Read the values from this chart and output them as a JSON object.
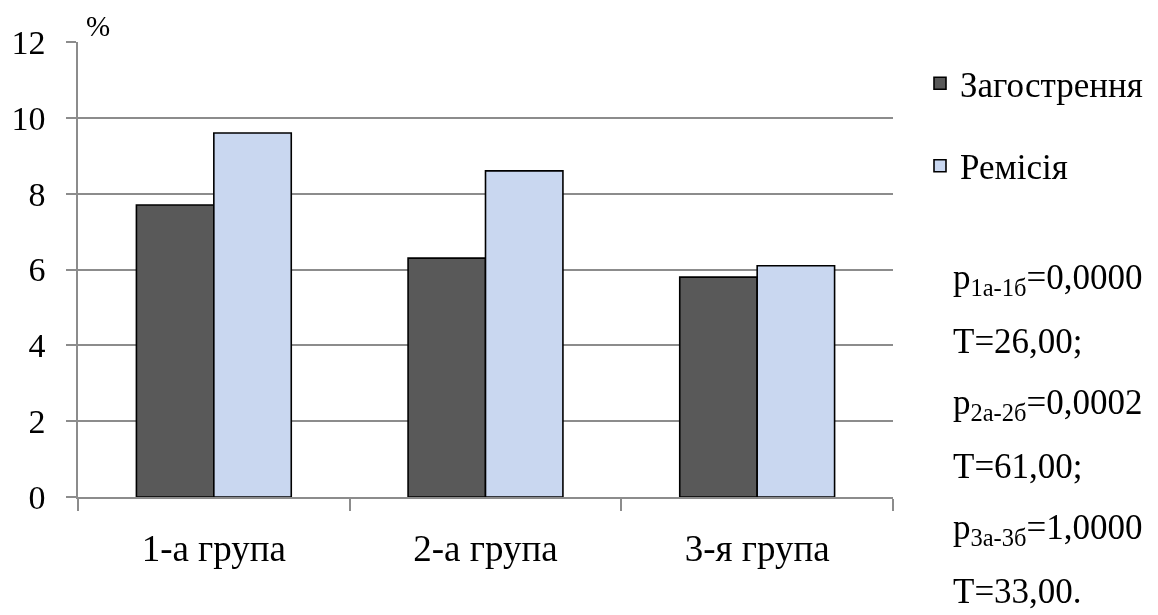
{
  "chart_data": {
    "type": "bar",
    "ylabel": "%",
    "categories": [
      "1-а група",
      "2-а група",
      "3-я група"
    ],
    "series": [
      {
        "name": "Загострення",
        "color": "#595959",
        "values": [
          7.7,
          6.3,
          5.8
        ]
      },
      {
        "name": "Ремісія",
        "color": "#c9d7f0",
        "values": [
          9.6,
          8.6,
          6.1
        ]
      }
    ],
    "ylim": [
      0,
      12
    ],
    "yticks": [
      0,
      2,
      4,
      6,
      8,
      10,
      12
    ],
    "grid": "y",
    "legend": "top right",
    "annotations": [
      "p$_{1а-1б}$=0,0000",
      "T=26,00;",
      "p$_{2а-2б}$=0,0002",
      "T=61,00;",
      "p$_{3а-3б}$=1,0000",
      "T=33,00."
    ]
  }
}
